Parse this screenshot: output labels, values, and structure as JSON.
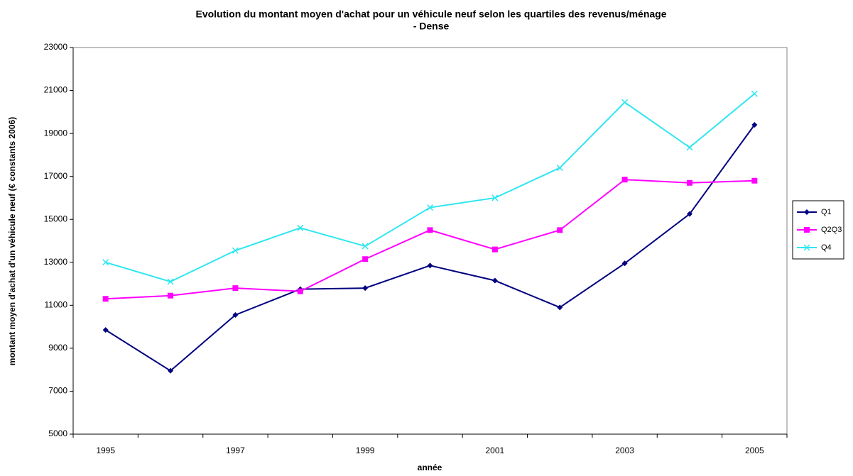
{
  "chart_data": {
    "type": "line",
    "title": [
      "Evolution du montant moyen d'achat pour un véhicule neuf selon les quartiles des revenus/ménage",
      "- Dense"
    ],
    "x_label": "année",
    "y_label": "montant moyen d'achat d'un véhicule neuf (€ constants 2006)",
    "categories": [
      "1995",
      null,
      "1997",
      null,
      "1999",
      null,
      "2001",
      null,
      "2003",
      null,
      "2005"
    ],
    "series": [
      {
        "name": "Q1",
        "color": "#000080",
        "marker": "diamond",
        "values": [
          9850,
          7950,
          10550,
          11750,
          11800,
          12850,
          12150,
          10900,
          12950,
          15250,
          19400
        ]
      },
      {
        "name": "Q2Q3",
        "color": "#ff00ff",
        "marker": "square",
        "values": [
          11300,
          11450,
          11800,
          11650,
          13150,
          14500,
          13600,
          14500,
          16850,
          16700,
          16800
        ]
      },
      {
        "name": "Q4",
        "color": "#2ee6f0",
        "marker": "x",
        "values": [
          13000,
          12100,
          13550,
          14600,
          13750,
          15550,
          16000,
          17400,
          20450,
          18350,
          20850
        ]
      }
    ],
    "ylim": [
      5000,
      23000
    ],
    "yticks": [
      5000,
      7000,
      9000,
      11000,
      13000,
      15000,
      17000,
      19000,
      21000,
      23000
    ],
    "grid": false,
    "legend": "right"
  }
}
